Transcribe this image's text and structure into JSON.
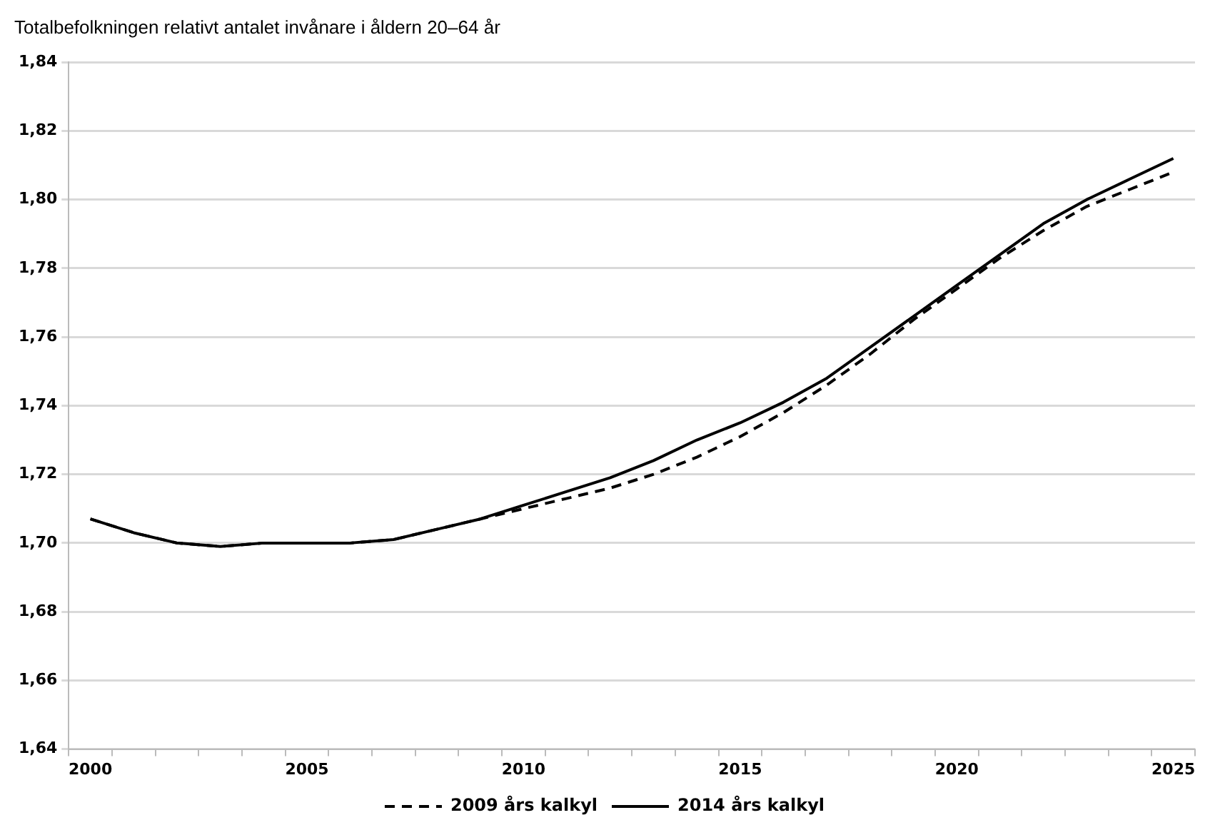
{
  "chart_data": {
    "type": "line",
    "title": "Totalbefolkningen relativt antalet invånare i åldern 20–64 år",
    "categories": [
      "2000",
      null,
      null,
      null,
      null,
      "2005",
      null,
      null,
      null,
      null,
      "2010",
      null,
      null,
      null,
      null,
      "2015",
      null,
      null,
      null,
      null,
      "2020",
      null,
      null,
      null,
      null,
      "2025"
    ],
    "series": [
      {
        "name": "2009 års kalkyl",
        "color": "#000000",
        "line_style": "dashed",
        "values": [
          1.707,
          1.703,
          1.7,
          1.699,
          1.7,
          1.7,
          1.7,
          1.701,
          1.704,
          1.707,
          1.71,
          1.713,
          1.716,
          1.72,
          1.725,
          1.731,
          1.738,
          1.746,
          1.755,
          1.765,
          1.774,
          1.783,
          1.791,
          1.798,
          1.803,
          1.808
        ]
      },
      {
        "name": "2014 års kalkyl",
        "color": "#000000",
        "line_style": "solid",
        "values": [
          1.707,
          1.703,
          1.7,
          1.699,
          1.7,
          1.7,
          1.7,
          1.701,
          1.704,
          1.707,
          1.711,
          1.715,
          1.719,
          1.724,
          1.73,
          1.735,
          1.741,
          1.748,
          1.757,
          1.766,
          1.775,
          1.784,
          1.793,
          1.8,
          1.806,
          1.812
        ]
      }
    ],
    "ylim": [
      1.64,
      1.84
    ],
    "yticks": [
      {
        "value": 1.64,
        "label": "1,64"
      },
      {
        "value": 1.66,
        "label": "1,66"
      },
      {
        "value": 1.68,
        "label": "1,68"
      },
      {
        "value": 1.7,
        "label": "1,70"
      },
      {
        "value": 1.72,
        "label": "1,72"
      },
      {
        "value": 1.74,
        "label": "1,74"
      },
      {
        "value": 1.76,
        "label": "1,76"
      },
      {
        "value": 1.78,
        "label": "1,78"
      },
      {
        "value": 1.8,
        "label": "1,80"
      },
      {
        "value": 1.82,
        "label": "1,82"
      },
      {
        "value": 1.84,
        "label": "1,84"
      }
    ],
    "grid": "y",
    "legend": "bottom",
    "marker": "none"
  }
}
